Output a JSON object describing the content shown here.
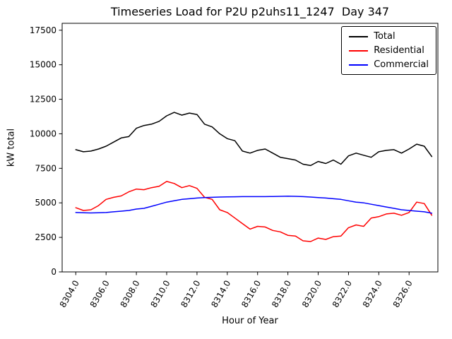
{
  "chart_data": {
    "type": "line",
    "title": "Timeseries Load for P2U p2uhs11_1247  Day 347",
    "xlabel": "Hour of Year",
    "ylabel": "kW total",
    "xlim": [
      8303.1,
      8327.9
    ],
    "ylim": [
      0,
      18000
    ],
    "grid": false,
    "legend_position": "upper right",
    "xticks": [
      8304,
      8306,
      8308,
      8310,
      8312,
      8314,
      8316,
      8318,
      8320,
      8322,
      8324,
      8326
    ],
    "xtick_labels": [
      "8304.0",
      "8306.0",
      "8308.0",
      "8310.0",
      "8312.0",
      "8314.0",
      "8316.0",
      "8318.0",
      "8320.0",
      "8322.0",
      "8324.0",
      "8326.0"
    ],
    "yticks": [
      0,
      2500,
      5000,
      7500,
      10000,
      12500,
      15000,
      17500
    ],
    "x": [
      8304.0,
      8304.5,
      8305.0,
      8305.5,
      8306.0,
      8306.5,
      8307.0,
      8307.5,
      8308.0,
      8308.5,
      8309.0,
      8309.5,
      8310.0,
      8310.5,
      8311.0,
      8311.5,
      8312.0,
      8312.5,
      8313.0,
      8313.5,
      8314.0,
      8314.5,
      8315.0,
      8315.5,
      8316.0,
      8316.5,
      8317.0,
      8317.5,
      8318.0,
      8318.5,
      8319.0,
      8319.5,
      8320.0,
      8320.5,
      8321.0,
      8321.5,
      8322.0,
      8322.5,
      8323.0,
      8323.5,
      8324.0,
      8324.5,
      8325.0,
      8325.5,
      8326.0,
      8326.5,
      8327.0,
      8327.5
    ],
    "series": [
      {
        "name": "Total",
        "color": "#000000",
        "values": [
          8850,
          8700,
          8750,
          8900,
          9100,
          9400,
          9700,
          9800,
          10400,
          10600,
          10700,
          10900,
          11300,
          11550,
          11350,
          11500,
          11400,
          10700,
          10500,
          10000,
          9650,
          9500,
          8750,
          8600,
          8800,
          8900,
          8600,
          8300,
          8200,
          8100,
          7800,
          7700,
          8000,
          7850,
          8100,
          7800,
          8400,
          8600,
          8450,
          8300,
          8700,
          8800,
          8850,
          8600,
          8900,
          9250,
          9100,
          8350
        ]
      },
      {
        "name": "Residential",
        "color": "#ff0000",
        "values": [
          4650,
          4450,
          4500,
          4800,
          5250,
          5400,
          5500,
          5800,
          6000,
          5950,
          6100,
          6200,
          6550,
          6400,
          6100,
          6250,
          6050,
          5400,
          5250,
          4500,
          4300,
          3900,
          3500,
          3100,
          3300,
          3250,
          3000,
          2900,
          2650,
          2600,
          2250,
          2200,
          2450,
          2350,
          2550,
          2600,
          3200,
          3400,
          3300,
          3900,
          4000,
          4200,
          4250,
          4100,
          4300,
          5050,
          4950,
          4100
        ]
      },
      {
        "name": "Commercial",
        "color": "#0000ff",
        "values": [
          4300,
          4280,
          4270,
          4280,
          4300,
          4350,
          4400,
          4450,
          4550,
          4600,
          4750,
          4900,
          5050,
          5150,
          5250,
          5300,
          5350,
          5380,
          5400,
          5420,
          5430,
          5440,
          5450,
          5450,
          5450,
          5450,
          5460,
          5470,
          5480,
          5470,
          5450,
          5420,
          5380,
          5350,
          5300,
          5250,
          5150,
          5050,
          5000,
          4900,
          4800,
          4700,
          4600,
          4500,
          4450,
          4400,
          4350,
          4250
        ]
      }
    ]
  }
}
